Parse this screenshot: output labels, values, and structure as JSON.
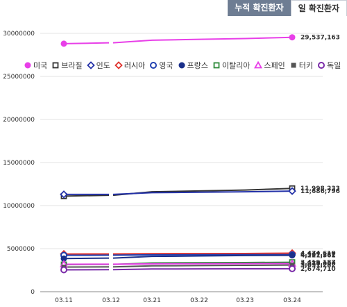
{
  "tabs": [
    {
      "label": "누적 확진환자",
      "active": true
    },
    {
      "label": "일 확진환자",
      "active": false
    }
  ],
  "chart_data": {
    "type": "line",
    "categories": [
      "03.11",
      "03.12",
      "03.21",
      "03.22",
      "03.23",
      "03.24"
    ],
    "ylim": [
      0,
      30000000
    ],
    "yticks": [
      "0",
      "5000000",
      "10000000",
      "15000000",
      "20000000",
      "25000000",
      "30000000"
    ],
    "grid": true,
    "legend_position": "top",
    "series": [
      {
        "name": "미국",
        "color": "#e83fe8",
        "marker": "circle-filled",
        "values": [
          28800000,
          28900000,
          29200000,
          29300000,
          29400000,
          29537163
        ],
        "end_label": "29,537,163"
      },
      {
        "name": "브라질",
        "color": "#333333",
        "marker": "square-open",
        "values": [
          11100000,
          11200000,
          11600000,
          11700000,
          11800000,
          11998233
        ],
        "end_label": "11,998,233"
      },
      {
        "name": "인도",
        "color": "#2432a8",
        "marker": "diamond-open",
        "values": [
          11300000,
          11300000,
          11500000,
          11550000,
          11600000,
          11686796
        ],
        "end_label": "11,686,796"
      },
      {
        "name": "러시아",
        "color": "#e0302a",
        "marker": "diamond-open",
        "values": [
          4380000,
          4390000,
          4420000,
          4430000,
          4440000,
          4474610
        ],
        "end_label": "4,474,610"
      },
      {
        "name": "영국",
        "color": "#1f3fb0",
        "marker": "circle-open",
        "values": [
          4230000,
          4240000,
          4280000,
          4290000,
          4300000,
          4307282
        ],
        "end_label": "4,307,282"
      },
      {
        "name": "프랑스",
        "color": "#1a2f8a",
        "marker": "circle-filled",
        "values": [
          3850000,
          3900000,
          4100000,
          4150000,
          4200000,
          4221561
        ],
        "end_label": "4,221,561"
      },
      {
        "name": "이탈리아",
        "color": "#2e8b3a",
        "marker": "square-open",
        "values": [
          3150000,
          3170000,
          3340000,
          3370000,
          3390000,
          3419187
        ],
        "end_label": "3,419,187"
      },
      {
        "name": "스페인",
        "color": "#e83fe8",
        "marker": "triangle-open",
        "values": [
          3190000,
          3200000,
          3240000,
          3250000,
          3260000,
          3270000
        ],
        "end_label": "3,270,000"
      },
      {
        "name": "터키",
        "color": "#555555",
        "marker": "square-filled",
        "values": [
          2860000,
          2880000,
          3000000,
          3030000,
          3060000,
          3091282
        ],
        "end_label": "3,091,282"
      },
      {
        "name": "독일",
        "color": "#7a2aa8",
        "marker": "circle-open",
        "values": [
          2540000,
          2560000,
          2640000,
          2650000,
          2660000,
          2674710
        ],
        "end_label": "2,674,710"
      }
    ]
  }
}
